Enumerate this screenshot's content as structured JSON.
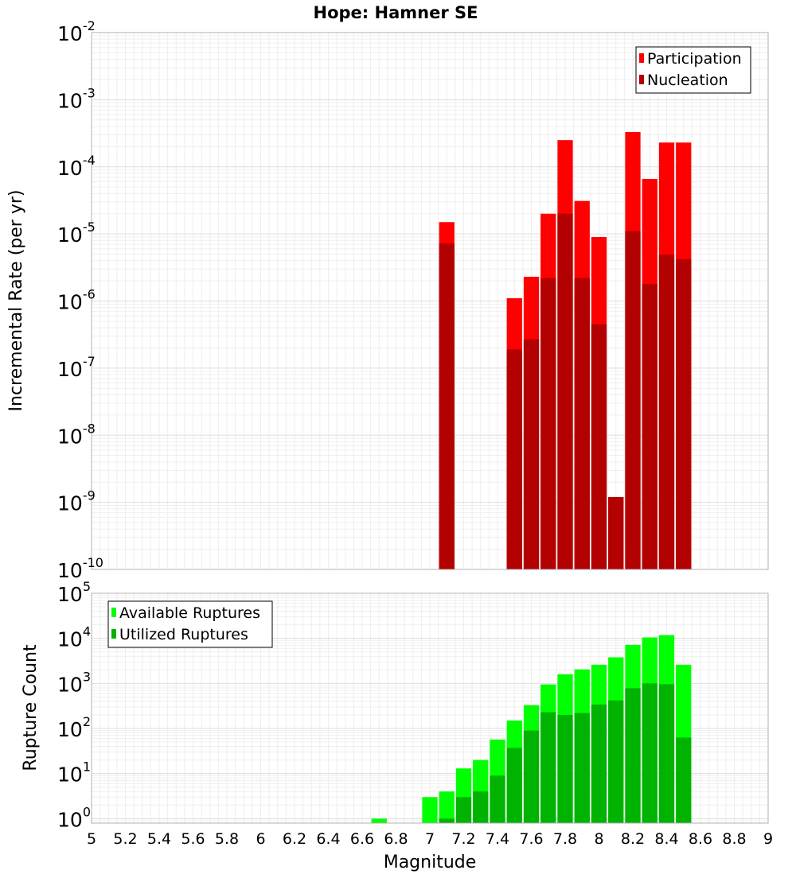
{
  "chart_data": {
    "title": "Hope: Hamner SE",
    "type": "bar",
    "xlabel": "Magnitude",
    "xlim": [
      5,
      9
    ],
    "xticks": [
      "5",
      "5.2",
      "5.4",
      "5.6",
      "5.8",
      "6",
      "6.2",
      "6.4",
      "6.6",
      "6.8",
      "7",
      "7.2",
      "7.4",
      "7.6",
      "7.8",
      "8",
      "8.2",
      "8.4",
      "8.6",
      "8.8",
      "9"
    ],
    "grid": true,
    "panels": [
      {
        "ylabel": "Incremental Rate (per yr)",
        "yscale": "log",
        "ylim_exp": [
          -10,
          -2
        ],
        "yticks": [
          "10",
          "10",
          "10",
          "10",
          "10",
          "10",
          "10",
          "10",
          "10"
        ],
        "ytick_exps": [
          "-10",
          "-9",
          "-8",
          "-7",
          "-6",
          "-5",
          "-4",
          "-3",
          "-2"
        ],
        "legend_position": "top-right",
        "series": [
          {
            "name": "Participation",
            "color": "#ff0000",
            "x": [
              7.1,
              7.5,
              7.6,
              7.7,
              7.8,
              7.9,
              8.0,
              8.1,
              8.2,
              8.3,
              8.4,
              8.5
            ],
            "values": [
              1.5e-05,
              1.1e-06,
              2.3e-06,
              2e-05,
              0.00025,
              3.1e-05,
              9e-06,
              1.2e-09,
              0.00033,
              6.6e-05,
              0.00023,
              0.00023
            ]
          },
          {
            "name": "Nucleation",
            "color": "#b30000",
            "x": [
              7.1,
              7.5,
              7.6,
              7.7,
              7.8,
              7.9,
              8.0,
              8.1,
              8.2,
              8.3,
              8.4,
              8.5
            ],
            "values": [
              7.2e-06,
              1.9e-07,
              2.7e-07,
              2.2e-06,
              2e-05,
              2.2e-06,
              4.5e-07,
              1.2e-09,
              1.1e-05,
              1.8e-06,
              4.9e-06,
              4.2e-06
            ]
          }
        ]
      },
      {
        "ylabel": "Rupture Count",
        "yscale": "log",
        "ylim_exp": [
          -0.1,
          5
        ],
        "yticks": [
          "10",
          "10",
          "10",
          "10",
          "10",
          "10"
        ],
        "ytick_exps": [
          "0",
          "1",
          "2",
          "3",
          "4",
          "5"
        ],
        "legend_position": "top-left",
        "series": [
          {
            "name": "Available Ruptures",
            "color": "#00ff00",
            "x": [
              6.7,
              7.0,
              7.1,
              7.2,
              7.3,
              7.4,
              7.5,
              7.6,
              7.7,
              7.8,
              7.9,
              8.0,
              8.1,
              8.2,
              8.3,
              8.4,
              8.5
            ],
            "values": [
              1,
              3,
              4,
              13,
              20,
              57,
              150,
              330,
              950,
              1600,
              2050,
              2600,
              3800,
              7200,
              10500,
              11800,
              2600
            ]
          },
          {
            "name": "Utilized Ruptures",
            "color": "#00b300",
            "x": [
              7.1,
              7.2,
              7.3,
              7.4,
              7.5,
              7.6,
              7.7,
              7.8,
              7.9,
              8.0,
              8.1,
              8.2,
              8.3,
              8.4,
              8.5
            ],
            "values": [
              1,
              3,
              4,
              9,
              37,
              90,
              230,
              200,
              220,
              340,
              420,
              780,
              1000,
              960,
              63
            ]
          }
        ]
      }
    ]
  }
}
